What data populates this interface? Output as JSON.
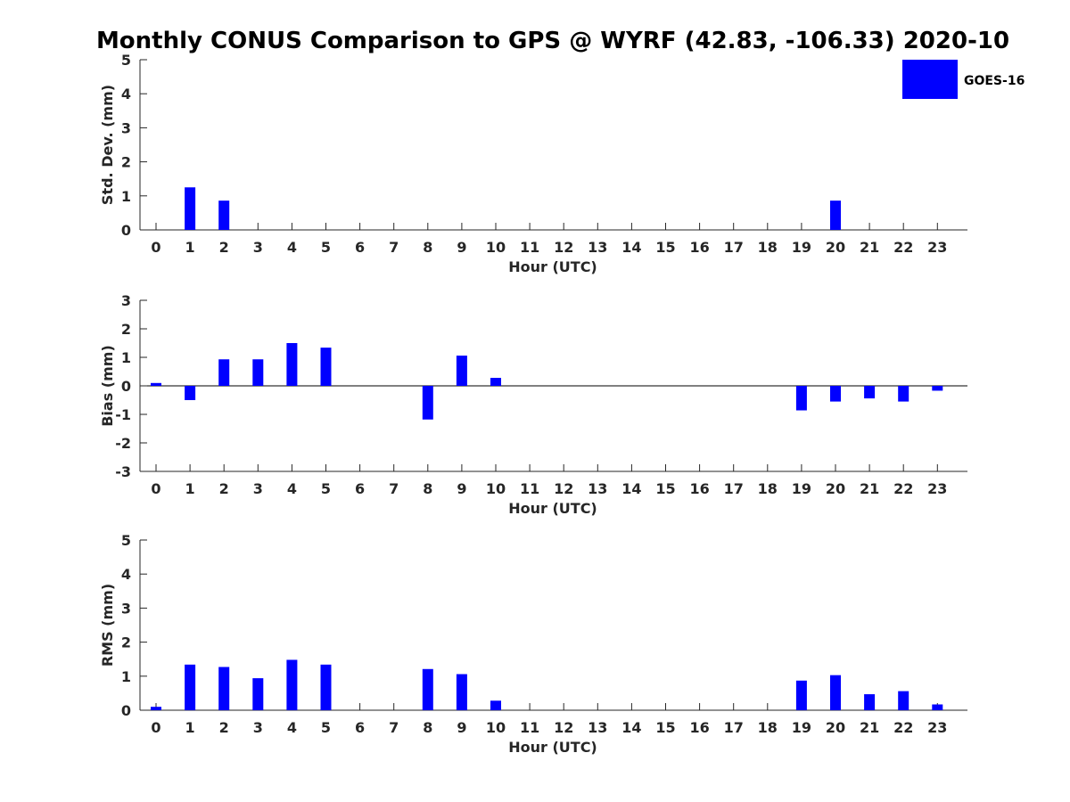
{
  "title": "Monthly CONUS Comparison to GPS @ WYRF (42.83, -106.33) 2020-10",
  "legend": {
    "label": "GOES-16",
    "color": "#0000ff"
  },
  "chart_data": [
    {
      "type": "bar",
      "name": "std_dev",
      "ylabel": "Std. Dev. (mm)",
      "xlabel": "Hour (UTC)",
      "ylim": [
        0,
        5
      ],
      "yticks": [
        "0",
        "1",
        "2",
        "3",
        "4",
        "5"
      ],
      "categories": [
        "0",
        "1",
        "2",
        "3",
        "4",
        "5",
        "6",
        "7",
        "8",
        "9",
        "10",
        "11",
        "12",
        "13",
        "14",
        "15",
        "16",
        "17",
        "18",
        "19",
        "20",
        "21",
        "22",
        "23"
      ],
      "series": [
        {
          "name": "GOES-16",
          "values": [
            null,
            1.25,
            0.86,
            null,
            null,
            null,
            null,
            null,
            null,
            null,
            null,
            null,
            null,
            null,
            null,
            null,
            null,
            null,
            null,
            null,
            0.86,
            null,
            null,
            null
          ]
        }
      ]
    },
    {
      "type": "bar",
      "name": "bias",
      "ylabel": "Bias (mm)",
      "xlabel": "Hour (UTC)",
      "ylim": [
        -3,
        3
      ],
      "yticks": [
        "-3",
        "-2",
        "-1",
        "0",
        "1",
        "2",
        "3"
      ],
      "zero_line": true,
      "categories": [
        "0",
        "1",
        "2",
        "3",
        "4",
        "5",
        "6",
        "7",
        "8",
        "9",
        "10",
        "11",
        "12",
        "13",
        "14",
        "15",
        "16",
        "17",
        "18",
        "19",
        "20",
        "21",
        "22",
        "23"
      ],
      "series": [
        {
          "name": "GOES-16",
          "values": [
            0.1,
            -0.5,
            0.93,
            0.93,
            1.5,
            1.34,
            null,
            null,
            -1.18,
            1.06,
            0.28,
            null,
            null,
            null,
            null,
            null,
            null,
            null,
            null,
            -0.86,
            -0.55,
            -0.44,
            -0.55,
            -0.17
          ]
        }
      ]
    },
    {
      "type": "bar",
      "name": "rms",
      "ylabel": "RMS (mm)",
      "xlabel": "Hour (UTC)",
      "ylim": [
        0,
        5
      ],
      "yticks": [
        "0",
        "1",
        "2",
        "3",
        "4",
        "5"
      ],
      "categories": [
        "0",
        "1",
        "2",
        "3",
        "4",
        "5",
        "6",
        "7",
        "8",
        "9",
        "10",
        "11",
        "12",
        "13",
        "14",
        "15",
        "16",
        "17",
        "18",
        "19",
        "20",
        "21",
        "22",
        "23"
      ],
      "series": [
        {
          "name": "GOES-16",
          "values": [
            0.1,
            1.34,
            1.27,
            0.94,
            1.48,
            1.34,
            null,
            null,
            1.21,
            1.06,
            0.28,
            null,
            null,
            null,
            null,
            null,
            null,
            null,
            null,
            0.87,
            1.03,
            0.47,
            0.56,
            0.17
          ]
        }
      ]
    }
  ]
}
